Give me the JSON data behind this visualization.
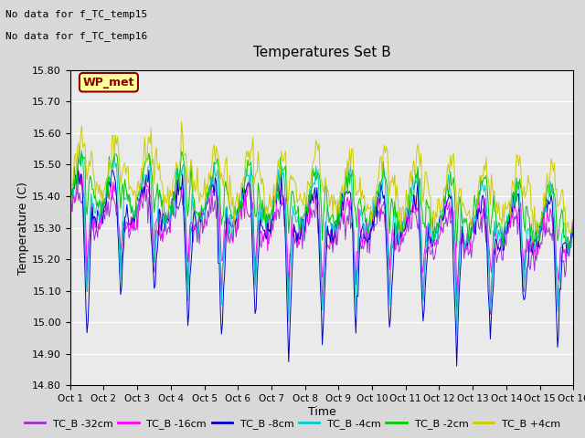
{
  "title": "Temperatures Set B",
  "xlabel": "Time",
  "ylabel": "Temperature (C)",
  "ylim": [
    14.8,
    15.8
  ],
  "yticks": [
    14.8,
    14.9,
    15.0,
    15.1,
    15.2,
    15.3,
    15.4,
    15.5,
    15.6,
    15.7,
    15.8
  ],
  "bg_color": "#d8d8d8",
  "plot_bg_color": "#eaeaea",
  "annotations": [
    "No data for f_TC_temp15",
    "No data for f_TC_temp16"
  ],
  "legend_label": "WP_met",
  "legend_box_color": "#ffff99",
  "legend_text_color": "#880000",
  "series_colors": {
    "TC_B -32cm": "#9933cc",
    "TC_B -16cm": "#ff00ff",
    "TC_B -8cm": "#0000cc",
    "TC_B -4cm": "#00cccc",
    "TC_B -2cm": "#00cc00",
    "TC_B +4cm": "#cccc00"
  },
  "n_points": 480,
  "x_start": 0,
  "x_end": 15,
  "xtick_labels": [
    "Oct 1",
    "Oct 2",
    "Oct 3",
    "Oct 4",
    "Oct 5",
    "Oct 6",
    "Oct 7",
    "Oct 8",
    "Oct 9",
    "Oct 10",
    "Oct 11",
    "Oct 12",
    "Oct 13",
    "Oct 14",
    "Oct 15",
    "Oct 16"
  ],
  "xtick_positions": [
    0,
    1,
    2,
    3,
    4,
    5,
    6,
    7,
    8,
    9,
    10,
    11,
    12,
    13,
    14,
    15
  ]
}
